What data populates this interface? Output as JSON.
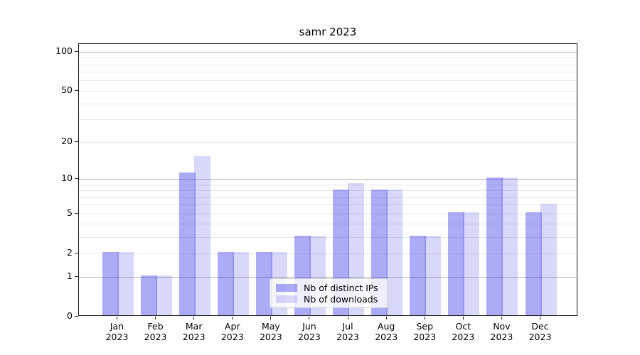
{
  "chart_data": {
    "type": "bar",
    "title": "samr 2023",
    "categories": [
      "Jan",
      "Feb",
      "Mar",
      "Apr",
      "May",
      "Jun",
      "Jul",
      "Aug",
      "Sep",
      "Oct",
      "Nov",
      "Dec"
    ],
    "year_suffix": "2023",
    "series": [
      {
        "name": "Nb of distinct IPs",
        "color": "rgba(60,60,235,0.43)",
        "values": [
          2,
          1,
          11,
          2,
          2,
          3,
          8,
          8,
          3,
          5,
          10,
          5
        ]
      },
      {
        "name": "Nb of downloads",
        "color": "rgba(60,60,235,0.20)",
        "values": [
          2,
          1,
          15,
          2,
          2,
          3,
          9,
          8,
          3,
          5,
          10,
          6
        ]
      }
    ],
    "yaxis": {
      "scale": "log10(1+v)",
      "tick_values": [
        0,
        1,
        2,
        5,
        10,
        20,
        50,
        100
      ],
      "tick_labels": [
        "0",
        "1",
        "2",
        "5",
        "10",
        "20",
        "50",
        "100"
      ],
      "major_gridlines": [
        1,
        10,
        100
      ],
      "minor_gridlines": [
        2,
        3,
        4,
        5,
        6,
        7,
        8,
        9,
        20,
        30,
        40,
        50,
        60,
        70,
        80,
        90
      ],
      "ylim": [
        0,
        115
      ]
    },
    "legend_position": "lower center",
    "grid": true
  },
  "colors": {
    "major_grid": "#bdbdbd",
    "minor_grid": "#e8e8e8",
    "spine": "#1a1a1a",
    "text": "#000000",
    "legend_border": "#cccccc",
    "legend_bg": "rgba(255,255,255,0.8)"
  },
  "layout_note": "bar chart, grouped pairs per month, log-like y scale"
}
